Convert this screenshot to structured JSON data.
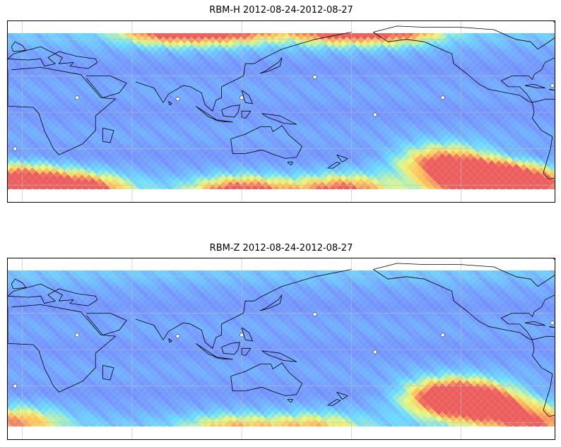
{
  "figure": {
    "panels": [
      {
        "id": "rbm-h",
        "title": "RBM-H 2012-08-24-2012-08-27",
        "base_color": "#6a86ff",
        "hot_spots": [
          {
            "lon": 80,
            "lat": 72,
            "level": 0.95
          },
          {
            "lon": 115,
            "lat": 72,
            "level": 0.85
          },
          {
            "lon": 170,
            "lat": 72,
            "level": 0.9
          },
          {
            "lon": 205,
            "lat": 72,
            "level": 0.8
          },
          {
            "lon": -5,
            "lat": -58,
            "level": 1.0
          },
          {
            "lon": 30,
            "lat": -65,
            "level": 0.9
          },
          {
            "lon": 120,
            "lat": -68,
            "level": 0.85
          },
          {
            "lon": 175,
            "lat": -66,
            "level": 0.7
          },
          {
            "lon": 250,
            "lat": -55,
            "level": 1.0
          },
          {
            "lon": 270,
            "lat": -60,
            "level": 1.0
          },
          {
            "lon": 230,
            "lat": -40,
            "level": 0.7
          }
        ]
      },
      {
        "id": "rbm-z",
        "title": "RBM-Z 2012-08-24-2012-08-27",
        "base_color": "#6a86ff",
        "hot_spots": [
          {
            "lon": 235,
            "lat": -38,
            "level": 0.9
          },
          {
            "lon": 250,
            "lat": -45,
            "level": 0.8
          },
          {
            "lon": 280,
            "lat": -60,
            "level": 0.6
          },
          {
            "lon": -5,
            "lat": -60,
            "level": 0.55
          },
          {
            "lon": 115,
            "lat": -68,
            "level": 0.5
          },
          {
            "lon": 160,
            "lat": -66,
            "level": 0.45
          }
        ]
      }
    ]
  }
}
